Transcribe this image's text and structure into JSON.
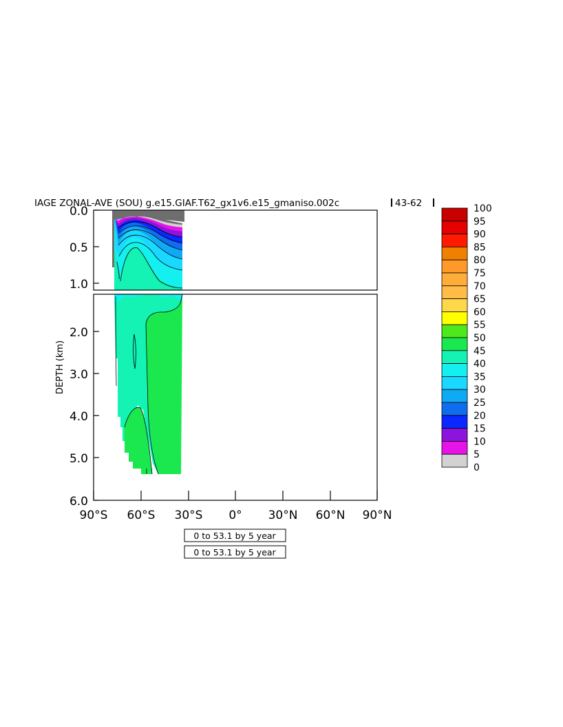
{
  "chart_data": {
    "type": "contour",
    "title": "IAGE ZONAL-AVE (SOU) g.e15.GIAF.T62_gx1v6.e15_gmaniso.002c",
    "title_suffix": "43-62",
    "ylabel": "DEPTH (km)",
    "upper_yticks": [
      "0.0",
      "0.5",
      "1.0"
    ],
    "lower_yticks": [
      "2.0",
      "3.0",
      "4.0",
      "5.0",
      "6.0"
    ],
    "xticks": [
      "90°S",
      "60°S",
      "30°S",
      "0°",
      "30°N",
      "60°N",
      "90°N"
    ],
    "ylim_upper": [
      0,
      1.1
    ],
    "ylim_lower": [
      1.1,
      6.0
    ],
    "xlim": [
      -90,
      90
    ],
    "contour_interval": 5,
    "colorbar_labels": [
      "100",
      "95",
      "90",
      "85",
      "80",
      "75",
      "70",
      "65",
      "60",
      "55",
      "50",
      "45",
      "40",
      "35",
      "30",
      "25",
      "20",
      "15",
      "10",
      "5",
      "0"
    ],
    "colorbar_colors": [
      "#c80000",
      "#e60000",
      "#ff1a00",
      "#f08000",
      "#ff9a2a",
      "#ffad3a",
      "#ffbc48",
      "#ffd84a",
      "#ffff00",
      "#4ee81c",
      "#1ae84e",
      "#14f2b4",
      "#14f0f0",
      "#1ad8ff",
      "#10aaf4",
      "#0f6ef0",
      "#0a28ff",
      "#8c14dc",
      "#e614e6",
      "#d2d2d2",
      "#6e6e6e"
    ],
    "time_boxes": [
      "0 to 53.1 by 5 year",
      "0 to 53.1 by 5 year"
    ]
  }
}
